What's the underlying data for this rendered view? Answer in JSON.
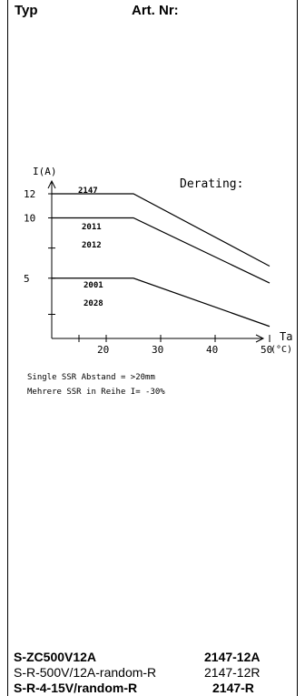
{
  "header": {
    "typ": "Typ",
    "art_nr": "Art. Nr:"
  },
  "chart_data": {
    "type": "line",
    "title": "Derating:",
    "xlabel": "Ta",
    "xunit": "(°C)",
    "ylabel": "I(A)",
    "xticks": [
      "20",
      "30",
      "40",
      "50"
    ],
    "yticks": [
      "12",
      "10",
      "5"
    ],
    "series": [
      {
        "name": "2147",
        "points": [
          [
            10,
            12
          ],
          [
            25,
            12
          ],
          [
            50,
            6
          ]
        ]
      },
      {
        "name": "2011 / 2012",
        "points": [
          [
            10,
            10
          ],
          [
            25,
            10
          ],
          [
            50,
            4.6
          ]
        ]
      },
      {
        "name": "2001 / 2028",
        "points": [
          [
            10,
            5
          ],
          [
            25,
            5
          ],
          [
            50,
            1
          ]
        ]
      }
    ],
    "labels": {
      "s1": "2147",
      "s2a": "2011",
      "s2b": "2012",
      "s3a": "2001",
      "s3b": "2028"
    },
    "notes": [
      "Single SSR   Abstand = >20mm",
      "Mehrere SSR in Reihe  I= -30%"
    ]
  },
  "rows": [
    {
      "name": "S-ZC500V12A",
      "art": "2147-12A",
      "bold": true
    },
    {
      "name": "S-R-500V/12A-random-R",
      "art": "2147-12R",
      "bold": false
    },
    {
      "name": "S-R-4-15V/random-R",
      "art": "2147-R",
      "bold": true
    }
  ]
}
